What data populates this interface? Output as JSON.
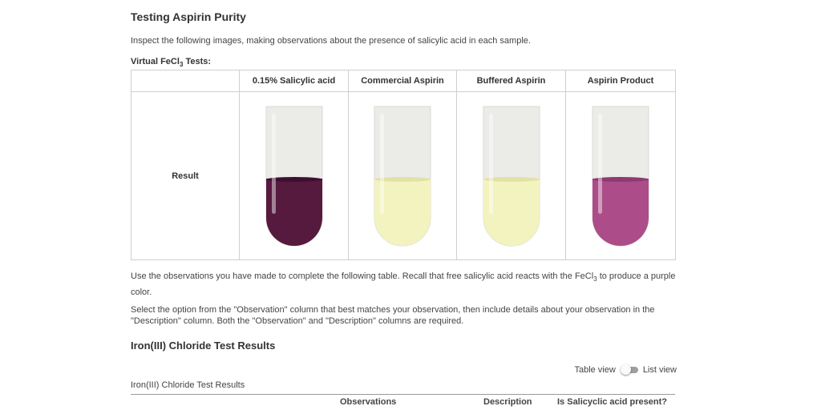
{
  "title": "Testing Aspirin Purity",
  "intro": "Inspect the following images, making observations about the presence of salicylic acid in each sample.",
  "virtual_tests": {
    "title_main": "Virtual FeCl",
    "title_sub": "3",
    "title_end": " Tests:",
    "row_label": "Result",
    "columns": [
      {
        "label": "0.15% Salicylic acid",
        "liquid_color": "#561a3e",
        "meniscus_color": "#3d1030"
      },
      {
        "label": "Commercial Aspirin",
        "liquid_color": "#f3f3c0",
        "meniscus_color": "#e2e1a6"
      },
      {
        "label": "Buffered Aspirin",
        "liquid_color": "#f3f3c0",
        "meniscus_color": "#e2e1a6"
      },
      {
        "label": "Aspirin Product",
        "liquid_color": "#ac4d89",
        "meniscus_color": "#8e3a72"
      }
    ],
    "tube_glass_color": "#ebebe8"
  },
  "instructions": {
    "p1_before": "Use the observations you have made to complete the following table. Recall that free salicylic acid reacts with the FeCl",
    "p1_sub": "3",
    "p1_after": " to produce a purple color.",
    "p2": "Select the option from the \"Observation\" column that best matches your observation, then include details about your observation in the \"Description\" column. Both the \"Observation\" and \"Description\" columns are required."
  },
  "results": {
    "heading": "Iron(III) Chloride Test Results",
    "caption": "Iron(III) Chloride Test Results",
    "view_toggle": {
      "left_label": "Table view",
      "right_label": "List view",
      "state": "table"
    },
    "columns": [
      "Observations",
      "Description",
      "Is Salicyclic acid present?"
    ]
  }
}
